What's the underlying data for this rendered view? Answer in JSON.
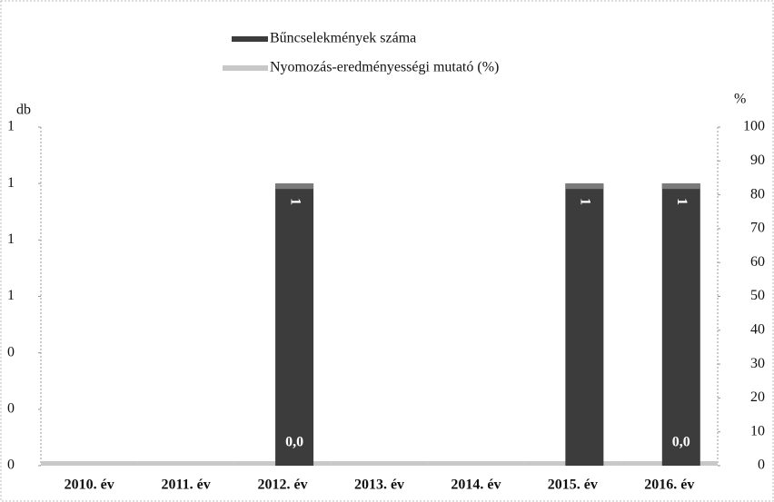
{
  "chart_data": {
    "type": "bar",
    "categories": [
      "2010. év",
      "2011. év",
      "2012. év",
      "2013. év",
      "2014. év",
      "2015. év",
      "2016. év"
    ],
    "series": [
      {
        "name": "Bűncselekmények száma",
        "color": "#3c3c3c",
        "values": [
          0,
          0,
          1,
          0,
          0,
          1,
          1
        ]
      },
      {
        "name": "Nyomozás-eredményességi mutató (%)",
        "color": "#c8c8c8",
        "axis": "y2",
        "values": [
          0,
          0,
          0,
          0,
          0,
          0,
          0
        ],
        "value_labels": [
          null,
          null,
          "0,0",
          null,
          null,
          null,
          "0,0"
        ]
      }
    ],
    "ylabel": "db",
    "y2label": "%",
    "ylim": [
      0,
      1.2
    ],
    "yticks": [
      0,
      {
        "value": 0.2,
        "label": "0"
      },
      {
        "value": 0.4,
        "label": "0"
      },
      {
        "value": 0.6,
        "label": "1"
      },
      {
        "value": 0.8,
        "label": "1"
      },
      {
        "value": 1.0,
        "label": "1"
      },
      {
        "value": 1.2,
        "label": "1"
      }
    ],
    "y2lim": [
      0,
      100
    ],
    "y2ticks": [
      0,
      10,
      20,
      30,
      40,
      50,
      60,
      70,
      80,
      90,
      100
    ],
    "legend": "top"
  }
}
